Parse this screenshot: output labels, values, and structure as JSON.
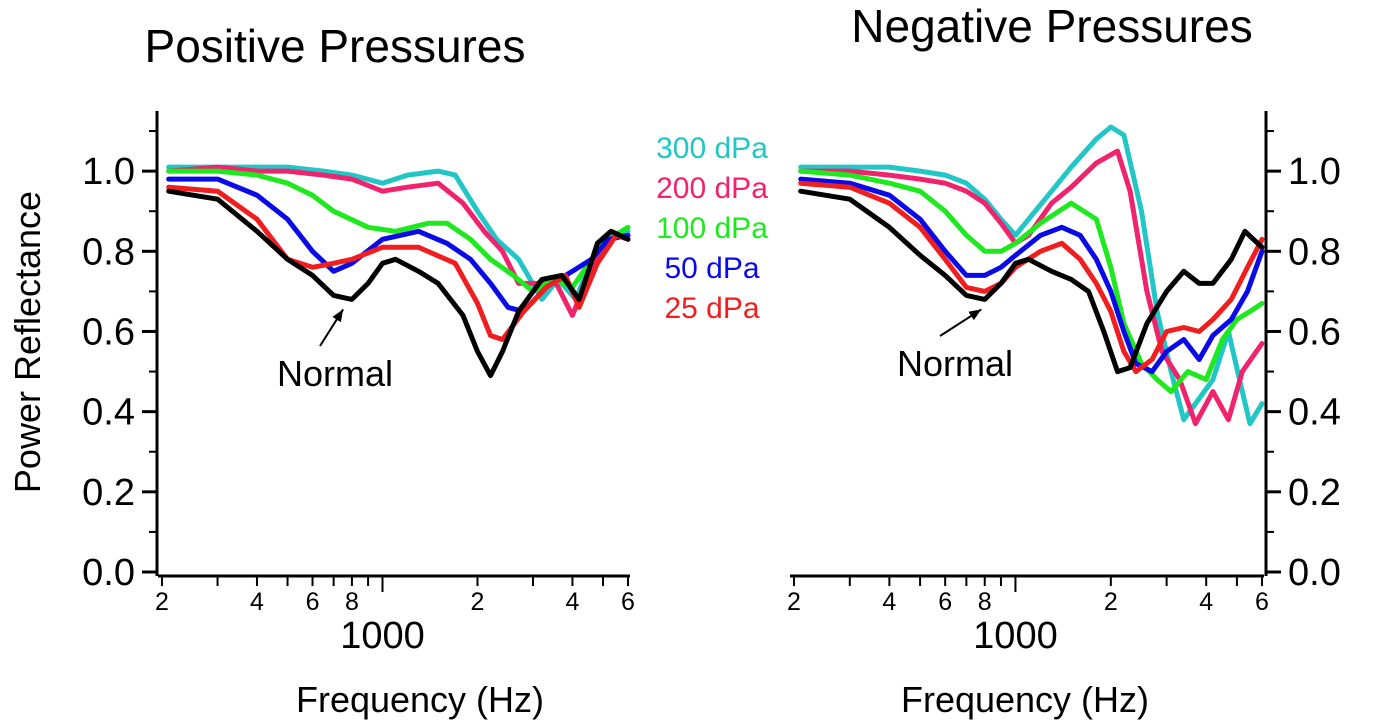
{
  "chart_data": [
    {
      "type": "line",
      "title": "Positive Pressures",
      "xlabel": "Frequency (Hz)",
      "ylabel": "Power Reflectance",
      "x_scale": "log",
      "xlim": [
        200,
        6000
      ],
      "ylim": [
        0.0,
        1.15
      ],
      "y_ticks": [
        "0.0",
        "0.2",
        "0.4",
        "0.6",
        "0.8",
        "1.0"
      ],
      "x_tick_labels": [
        {
          "x": 200,
          "label": "2"
        },
        {
          "x": 400,
          "label": "4"
        },
        {
          "x": 600,
          "label": "6"
        },
        {
          "x": 800,
          "label": "8"
        },
        {
          "x": 2000,
          "label": "2"
        },
        {
          "x": 4000,
          "label": "4"
        },
        {
          "x": 6000,
          "label": "6"
        }
      ],
      "x_decade_label": {
        "x": 1000,
        "label": "1000"
      },
      "legend": [
        "300 dPa",
        "200 dPa",
        "100 dPa",
        "50 dPa",
        "25 dPa"
      ],
      "annotation": {
        "text": "Normal",
        "target_x": 750,
        "target_y": 0.68
      },
      "series": [
        {
          "name": "300 dPa",
          "color": "#22c6c6",
          "x": [
            210,
            300,
            400,
            500,
            650,
            800,
            1000,
            1200,
            1500,
            1700,
            2000,
            2300,
            2700,
            3200,
            3600,
            4100,
            4600,
            5200,
            6000
          ],
          "y": [
            1.01,
            1.01,
            1.01,
            1.01,
            1.0,
            0.99,
            0.97,
            0.99,
            1.0,
            0.99,
            0.9,
            0.83,
            0.78,
            0.68,
            0.73,
            0.68,
            0.78,
            0.84,
            0.85
          ]
        },
        {
          "name": "200 dPa",
          "color": "#f0236c",
          "x": [
            210,
            300,
            400,
            500,
            650,
            800,
            1000,
            1200,
            1500,
            1800,
            2100,
            2400,
            2700,
            3100,
            3500,
            4000,
            4600,
            5200,
            6000
          ],
          "y": [
            1.0,
            1.01,
            1.0,
            1.0,
            0.99,
            0.98,
            0.95,
            0.96,
            0.97,
            0.92,
            0.85,
            0.8,
            0.72,
            0.72,
            0.73,
            0.64,
            0.76,
            0.83,
            0.84
          ]
        },
        {
          "name": "100 dPa",
          "color": "#1ee81e",
          "x": [
            210,
            300,
            400,
            500,
            600,
            700,
            900,
            1100,
            1400,
            1600,
            1900,
            2200,
            2600,
            3000,
            3500,
            4000,
            4600,
            5200,
            6000
          ],
          "y": [
            1.0,
            1.0,
            0.99,
            0.97,
            0.94,
            0.9,
            0.86,
            0.85,
            0.87,
            0.87,
            0.83,
            0.78,
            0.74,
            0.7,
            0.73,
            0.71,
            0.78,
            0.83,
            0.86
          ]
        },
        {
          "name": "50 dPa",
          "color": "#0a0ae6",
          "x": [
            210,
            300,
            400,
            500,
            600,
            700,
            800,
            1000,
            1300,
            1600,
            1900,
            2200,
            2500,
            2800,
            3300,
            4000,
            4600,
            5200,
            6000
          ],
          "y": [
            0.98,
            0.98,
            0.94,
            0.88,
            0.8,
            0.75,
            0.77,
            0.83,
            0.85,
            0.82,
            0.78,
            0.72,
            0.66,
            0.65,
            0.71,
            0.75,
            0.78,
            0.83,
            0.84
          ]
        },
        {
          "name": "25 dPa",
          "color": "#f01e1e",
          "x": [
            210,
            300,
            400,
            500,
            600,
            700,
            800,
            1000,
            1300,
            1700,
            2000,
            2200,
            2400,
            2800,
            3300,
            3800,
            4200,
            4800,
            5500,
            6000
          ],
          "y": [
            0.96,
            0.95,
            0.88,
            0.78,
            0.76,
            0.77,
            0.78,
            0.81,
            0.81,
            0.77,
            0.67,
            0.59,
            0.58,
            0.65,
            0.71,
            0.74,
            0.66,
            0.77,
            0.84,
            0.83
          ]
        },
        {
          "name": "Normal",
          "color": "#000000",
          "x": [
            210,
            300,
            400,
            500,
            600,
            700,
            800,
            900,
            1000,
            1100,
            1300,
            1500,
            1800,
            2000,
            2200,
            2400,
            2700,
            3200,
            3700,
            4200,
            4800,
            5300,
            6000
          ],
          "y": [
            0.95,
            0.93,
            0.85,
            0.78,
            0.74,
            0.69,
            0.68,
            0.72,
            0.77,
            0.78,
            0.75,
            0.72,
            0.64,
            0.55,
            0.49,
            0.55,
            0.65,
            0.73,
            0.74,
            0.68,
            0.82,
            0.85,
            0.83
          ]
        }
      ]
    },
    {
      "type": "line",
      "title": "Negative Pressures",
      "xlabel": "Frequency (Hz)",
      "ylabel": "",
      "x_scale": "log",
      "xlim": [
        200,
        6000
      ],
      "ylim": [
        0.0,
        1.15
      ],
      "y_ticks": [
        "0.0",
        "0.2",
        "0.4",
        "0.6",
        "0.8",
        "1.0"
      ],
      "x_tick_labels": [
        {
          "x": 200,
          "label": "2"
        },
        {
          "x": 400,
          "label": "4"
        },
        {
          "x": 600,
          "label": "6"
        },
        {
          "x": 800,
          "label": "8"
        },
        {
          "x": 2000,
          "label": "2"
        },
        {
          "x": 4000,
          "label": "4"
        },
        {
          "x": 6000,
          "label": "6"
        }
      ],
      "x_decade_label": {
        "x": 1000,
        "label": "1000"
      },
      "annotation": {
        "text": "Normal",
        "target_x": 780,
        "target_y": 0.68
      },
      "series": [
        {
          "name": "300 dPa",
          "color": "#22c6c6",
          "x": [
            210,
            300,
            400,
            500,
            600,
            700,
            800,
            900,
            1000,
            1100,
            1300,
            1500,
            1800,
            2000,
            2200,
            2500,
            2800,
            3100,
            3400,
            3700,
            4200,
            4700,
            5200,
            5500,
            6000
          ],
          "y": [
            1.01,
            1.01,
            1.01,
            1.0,
            0.99,
            0.97,
            0.93,
            0.88,
            0.84,
            0.88,
            0.95,
            1.01,
            1.08,
            1.11,
            1.09,
            0.9,
            0.65,
            0.5,
            0.38,
            0.42,
            0.48,
            0.6,
            0.45,
            0.37,
            0.42
          ]
        },
        {
          "name": "200 dPa",
          "color": "#f0236c",
          "x": [
            210,
            300,
            400,
            500,
            600,
            700,
            800,
            900,
            1000,
            1100,
            1300,
            1500,
            1800,
            2100,
            2300,
            2600,
            2900,
            3300,
            3700,
            4200,
            4700,
            5200,
            6000
          ],
          "y": [
            1.0,
            1.0,
            0.99,
            0.98,
            0.97,
            0.95,
            0.92,
            0.87,
            0.82,
            0.84,
            0.92,
            0.96,
            1.02,
            1.05,
            0.95,
            0.7,
            0.55,
            0.48,
            0.37,
            0.45,
            0.38,
            0.5,
            0.57
          ]
        },
        {
          "name": "100 dPa",
          "color": "#1ee81e",
          "x": [
            210,
            300,
            400,
            500,
            600,
            700,
            800,
            900,
            1000,
            1200,
            1500,
            1800,
            2000,
            2200,
            2500,
            2800,
            3100,
            3500,
            4000,
            4500,
            5000,
            5500,
            6000
          ],
          "y": [
            1.0,
            0.99,
            0.97,
            0.95,
            0.9,
            0.84,
            0.8,
            0.8,
            0.82,
            0.87,
            0.92,
            0.88,
            0.76,
            0.62,
            0.52,
            0.48,
            0.45,
            0.5,
            0.48,
            0.58,
            0.63,
            0.65,
            0.67
          ]
        },
        {
          "name": "50 dPa",
          "color": "#0a0ae6",
          "x": [
            210,
            300,
            400,
            500,
            600,
            700,
            800,
            900,
            1000,
            1200,
            1400,
            1600,
            1800,
            2000,
            2200,
            2400,
            2700,
            3000,
            3400,
            3800,
            4200,
            4800,
            5400,
            6000
          ],
          "y": [
            0.98,
            0.97,
            0.94,
            0.88,
            0.8,
            0.74,
            0.74,
            0.76,
            0.79,
            0.84,
            0.86,
            0.84,
            0.78,
            0.7,
            0.6,
            0.52,
            0.5,
            0.55,
            0.58,
            0.53,
            0.59,
            0.63,
            0.7,
            0.8
          ]
        },
        {
          "name": "25 dPa",
          "color": "#f01e1e",
          "x": [
            210,
            300,
            400,
            500,
            600,
            700,
            800,
            900,
            1000,
            1200,
            1400,
            1600,
            1800,
            2000,
            2200,
            2400,
            2700,
            3000,
            3400,
            3800,
            4200,
            4800,
            5400,
            6000
          ],
          "y": [
            0.97,
            0.96,
            0.92,
            0.86,
            0.78,
            0.71,
            0.7,
            0.72,
            0.76,
            0.8,
            0.82,
            0.78,
            0.72,
            0.65,
            0.55,
            0.5,
            0.53,
            0.6,
            0.61,
            0.6,
            0.63,
            0.68,
            0.76,
            0.83
          ]
        },
        {
          "name": "Normal",
          "color": "#000000",
          "x": [
            210,
            300,
            400,
            500,
            600,
            700,
            800,
            900,
            1000,
            1100,
            1300,
            1500,
            1700,
            1900,
            2100,
            2300,
            2600,
            3000,
            3400,
            3800,
            4200,
            4800,
            5300,
            6000
          ],
          "y": [
            0.95,
            0.93,
            0.86,
            0.79,
            0.74,
            0.69,
            0.68,
            0.72,
            0.77,
            0.78,
            0.75,
            0.73,
            0.7,
            0.6,
            0.5,
            0.51,
            0.62,
            0.7,
            0.75,
            0.72,
            0.72,
            0.78,
            0.85,
            0.81
          ]
        }
      ]
    }
  ]
}
